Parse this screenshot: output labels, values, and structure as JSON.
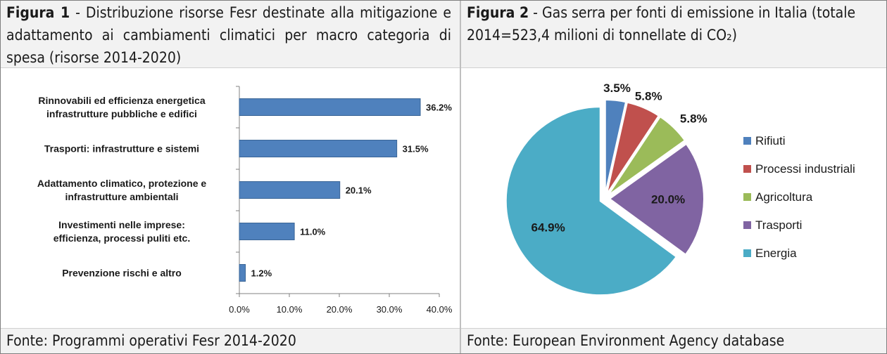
{
  "figure1": {
    "title_prefix": "Figura 1",
    "title_text": " - Distribuzione risorse Fesr destinate alla mitigazione e adattamento ai cambiamenti climatici per macro categoria di spesa (risorse 2014-2020)",
    "source": "Fonte: Programmi operativi Fesr 2014-2020"
  },
  "figure2": {
    "title_prefix": "Figura 2",
    "title_text": " - Gas serra per fonti di emissione in Italia (totale 2014=523,4 milioni di tonnellate di CO₂)",
    "source": "Fonte: European Environment Agency database"
  },
  "chart_data": [
    {
      "type": "bar",
      "orientation": "horizontal",
      "categories": [
        [
          "Rinnovabili ed efficienza energetica",
          "infrastrutture pubbliche e edifici"
        ],
        [
          "Trasporti: infrastrutture e sistemi"
        ],
        [
          "Adattamento climatico, protezione e",
          "infrastrutture ambientali"
        ],
        [
          "Investimenti nelle imprese:",
          "efficienza, processi puliti etc."
        ],
        [
          "Prevenzione rischi e altro"
        ]
      ],
      "values": [
        36.2,
        31.5,
        20.1,
        11.0,
        1.2
      ],
      "value_labels": [
        "36.2%",
        "31.5%",
        "20.1%",
        "11.0%",
        "1.2%"
      ],
      "xlim": [
        0,
        40
      ],
      "xticks": [
        "0.0%",
        "10.0%",
        "20.0%",
        "30.0%",
        "40.0%"
      ],
      "bar_color": "#4f81bd",
      "grid": false
    },
    {
      "type": "pie",
      "labels": [
        "Rifiuti",
        "Processi industriali",
        "Agricoltura",
        "Trasporti",
        "Energia"
      ],
      "values": [
        3.5,
        5.8,
        5.8,
        20.0,
        64.9
      ],
      "value_labels": [
        "3.5%",
        "5.8%",
        "5.8%",
        "20.0%",
        "64.9%"
      ],
      "colors": [
        "#4f81bd",
        "#c0504d",
        "#9bbb59",
        "#8064a2",
        "#4bacc6"
      ],
      "exploded": true,
      "legend_position": "right"
    }
  ]
}
